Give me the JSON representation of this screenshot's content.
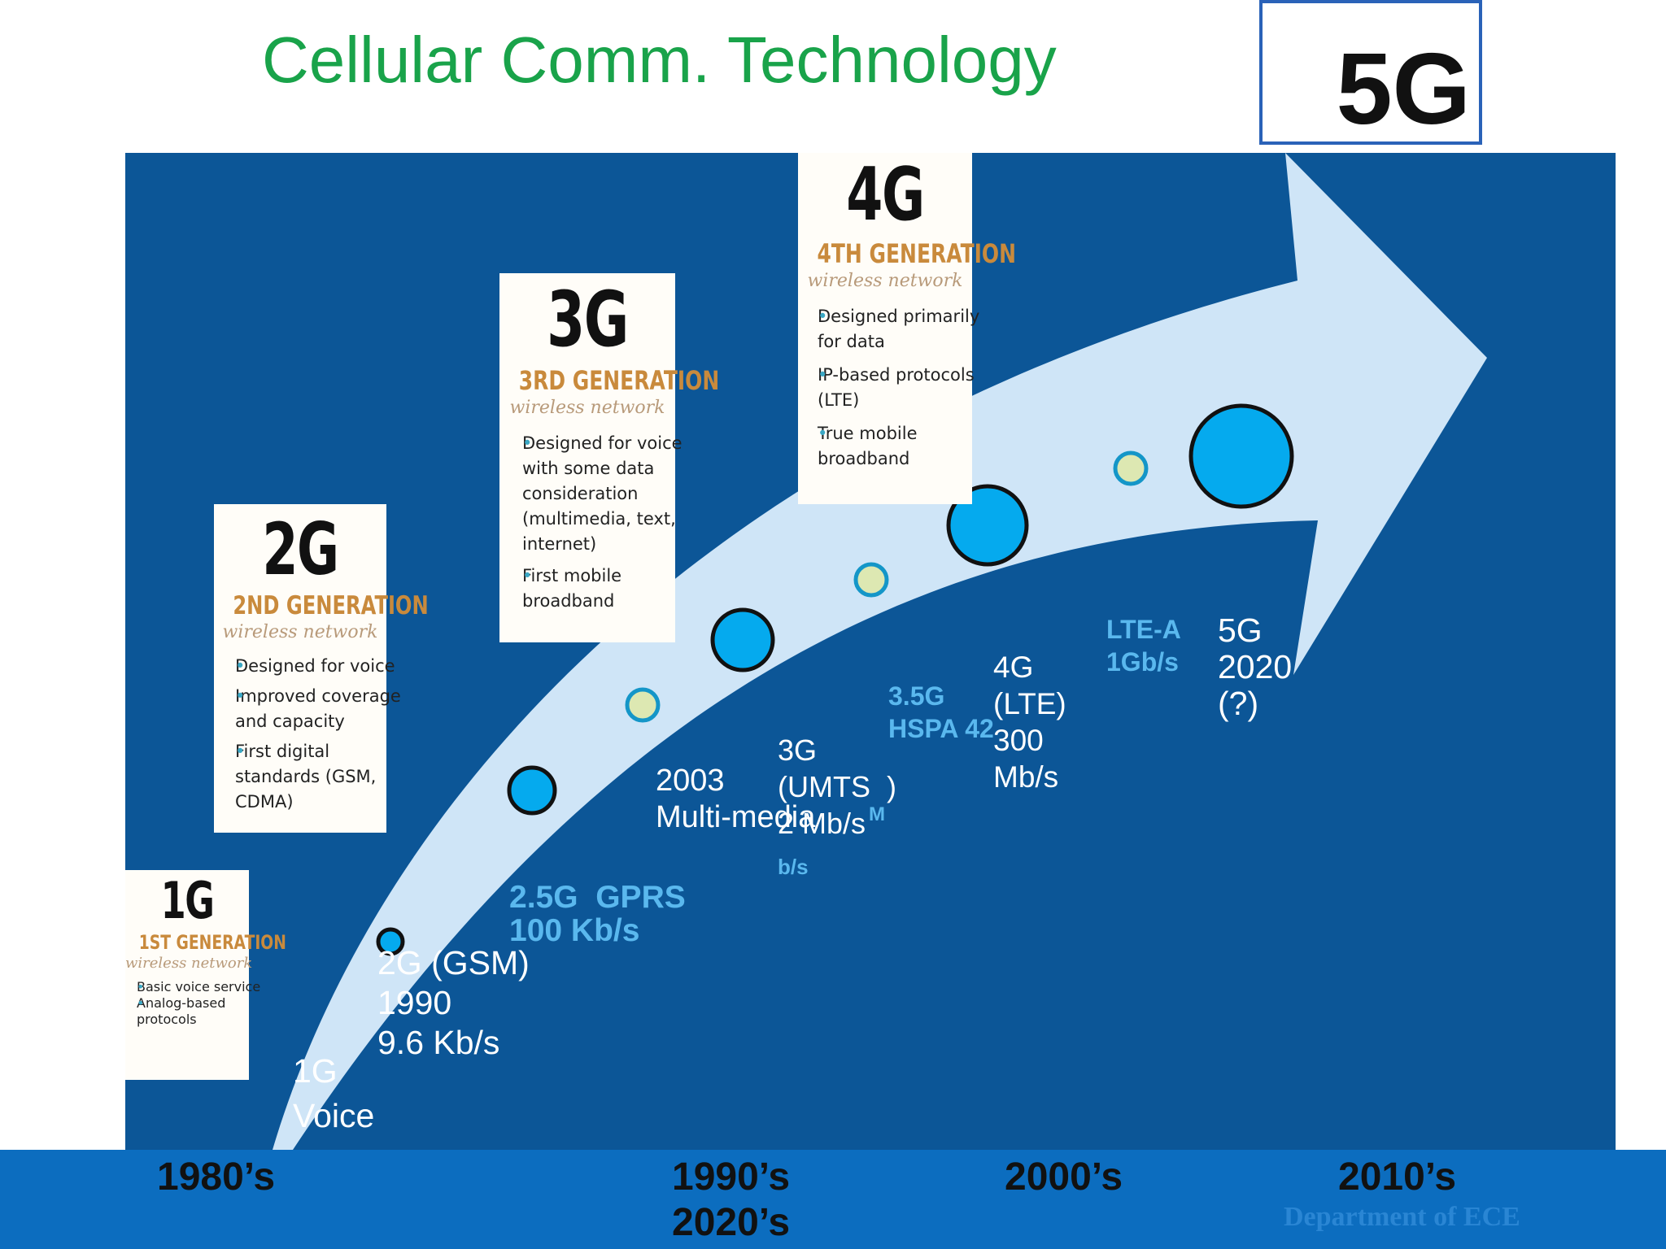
{
  "title": "Cellular Comm. Technology",
  "badge": "5G",
  "colors": {
    "title": "#19a34a",
    "panel": "#0c5697",
    "footer": "#0c6dbf",
    "arrow": "#cfe5f7",
    "node_blue": "#05aaee",
    "node_yellow": "#dde8b2",
    "highlight_text": "#5ab8ee"
  },
  "cards": {
    "g1": {
      "big": "1G",
      "generation": "1ST GENERATION",
      "subtitle": "wireless network",
      "bullets": [
        "Basic voice service",
        "Analog-based\nprotocols"
      ]
    },
    "g2": {
      "big": "2G",
      "generation": "2ND GENERATION",
      "subtitle": "wireless network",
      "bullets": [
        "Designed for voice",
        "Improved coverage\nand capacity",
        "First digital\nstandards (GSM,\nCDMA)"
      ]
    },
    "g3": {
      "big": "3G",
      "generation": "3RD GENERATION",
      "subtitle": "wireless network",
      "bullets": [
        "Designed for voice\nwith some data\nconsideration\n(multimedia, text,\ninternet)",
        "First mobile\nbroadband"
      ]
    },
    "g4": {
      "big": "4G",
      "generation": "4TH GENERATION",
      "subtitle": "wireless network",
      "bullets": [
        "Designed primarily\nfor data",
        "IP-based protocols\n(LTE)",
        "True mobile\nbroadband"
      ]
    }
  },
  "labels": {
    "g1": "1G\nVoice",
    "g2": "2G (GSM)\n1990\n9.6 Kb/s",
    "g25": "2.5G  GPRS\n100 Kb/s",
    "y2003": "2003\nMulti-media",
    "g3": "3G\n(UMTS  )\n2 Mb/s",
    "g3_units_m": "M",
    "g3_units_bs": "b/s",
    "g35": "3.5G\nHSPA 42",
    "g4": "4G\n(LTE)\n300\nMb/s",
    "ltea": "LTE-A\n1Gb/s",
    "g5": "5G\n2020\n(?)"
  },
  "eras": [
    "1980’s",
    "1990’s\n2020’s",
    "2000’s",
    "2010’s"
  ],
  "department": "Department of ECE"
}
